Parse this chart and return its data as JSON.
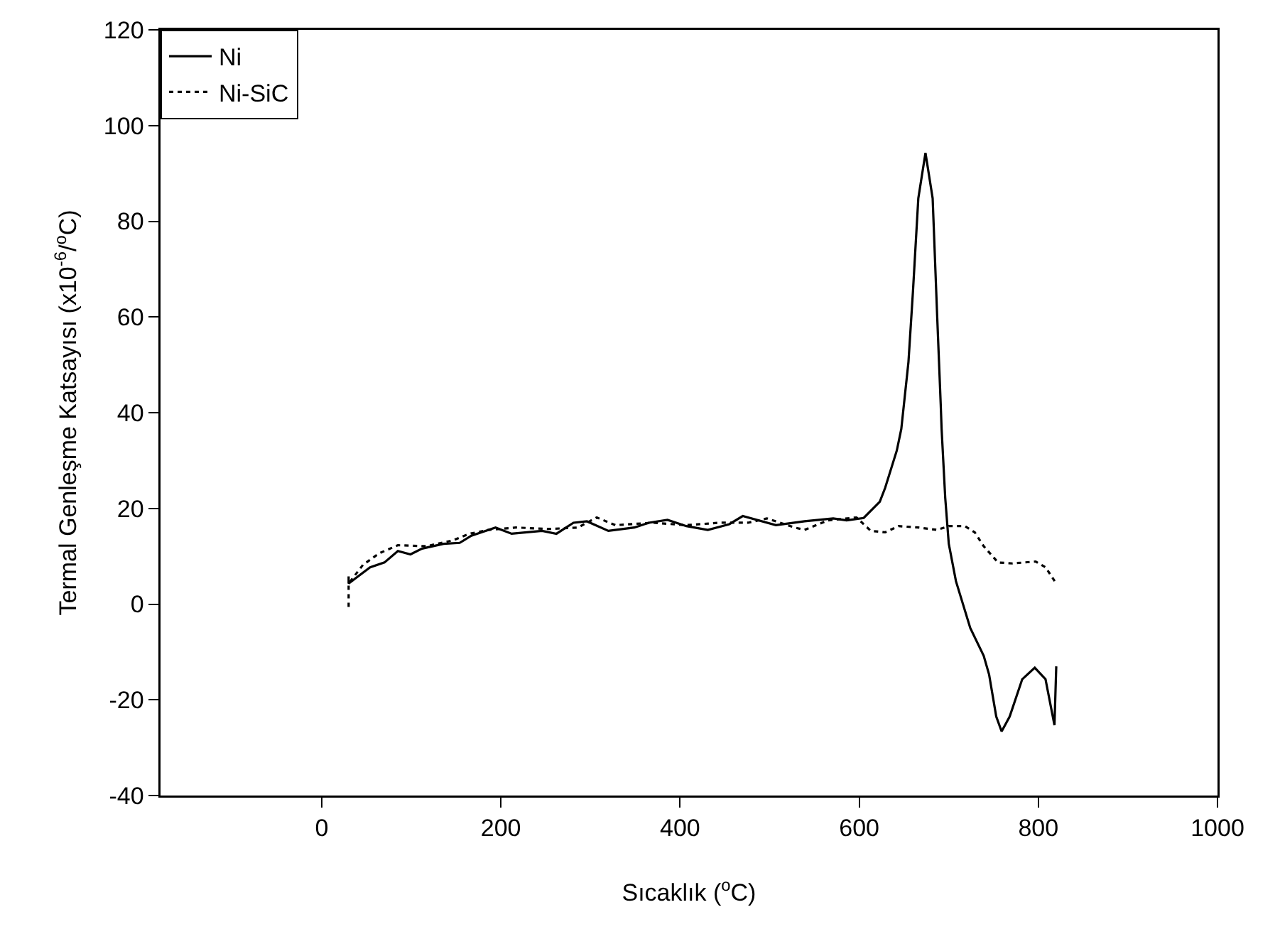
{
  "chart_data": {
    "type": "line",
    "xlabel": "Sıcaklık ($^{o}$C)",
    "ylabel": "Termal Genleşme Katsayısı (x10$^{-6}$/$^{o}$C)",
    "xlim": [
      -180,
      1000
    ],
    "xticks": [
      0,
      200,
      400,
      600,
      800,
      1000
    ],
    "ylim": [
      -40,
      120
    ],
    "yticks": [
      -40,
      -20,
      0,
      20,
      40,
      60,
      80,
      100,
      120
    ],
    "grid": false,
    "legend": "top left",
    "marker": "none",
    "series": [
      {
        "name": "Ni",
        "color": "#000000",
        "line_style": "solid",
        "x": [
          30,
          30,
          54,
          70,
          85,
          99,
          112,
          136,
          154,
          167,
          194,
          212,
          246,
          262,
          281,
          296,
          320,
          349,
          365,
          386,
          407,
          431,
          455,
          470,
          507,
          539,
          571,
          586,
          605,
          623,
          629,
          642,
          647,
          655,
          660,
          666,
          674,
          682,
          687,
          691,
          692,
          696,
          700,
          708,
          724,
          739,
          745,
          753,
          759,
          768,
          782,
          796,
          808,
          818,
          820
        ],
        "values": [
          5.8,
          4.3,
          7.7,
          8.7,
          11.1,
          10.4,
          11.6,
          12.6,
          12.8,
          14.3,
          16.0,
          14.7,
          15.3,
          14.7,
          17.0,
          17.3,
          15.3,
          16.0,
          17.0,
          17.6,
          16.3,
          15.5,
          16.7,
          18.4,
          16.5,
          17.3,
          17.9,
          17.5,
          18.0,
          21.4,
          24.3,
          32.1,
          36.6,
          50.6,
          65.3,
          84.8,
          94.3,
          84.8,
          60.4,
          41.8,
          36.6,
          22.3,
          12.6,
          4.8,
          -5,
          -10.8,
          -14.7,
          -23.5,
          -26.6,
          -23.5,
          -15.7,
          -13.3,
          -15.7,
          -25.3,
          -13
        ]
      },
      {
        "name": "Ni-SiC",
        "color": "#000000",
        "line_style": "dotted",
        "x": [
          30,
          30,
          46,
          64,
          85,
          117,
          146,
          165,
          186,
          217,
          254,
          286,
          307,
          328,
          370,
          407,
          444,
          476,
          497,
          528,
          539,
          565,
          597,
          613,
          629,
          644,
          666,
          687,
          700,
          718,
          729,
          739,
          755,
          771,
          797,
          808,
          820
        ],
        "values": [
          -0.6,
          4.3,
          8.2,
          10.6,
          12.3,
          12.1,
          13.3,
          14.7,
          15.5,
          16,
          15.7,
          16,
          18.1,
          16.5,
          17,
          16.5,
          17,
          17,
          17.9,
          16,
          15.5,
          17.5,
          18.1,
          15.3,
          15,
          16.3,
          16,
          15.5,
          16.3,
          16.3,
          15,
          12.1,
          8.7,
          8.5,
          8.9,
          7.7,
          4.3
        ]
      }
    ]
  }
}
